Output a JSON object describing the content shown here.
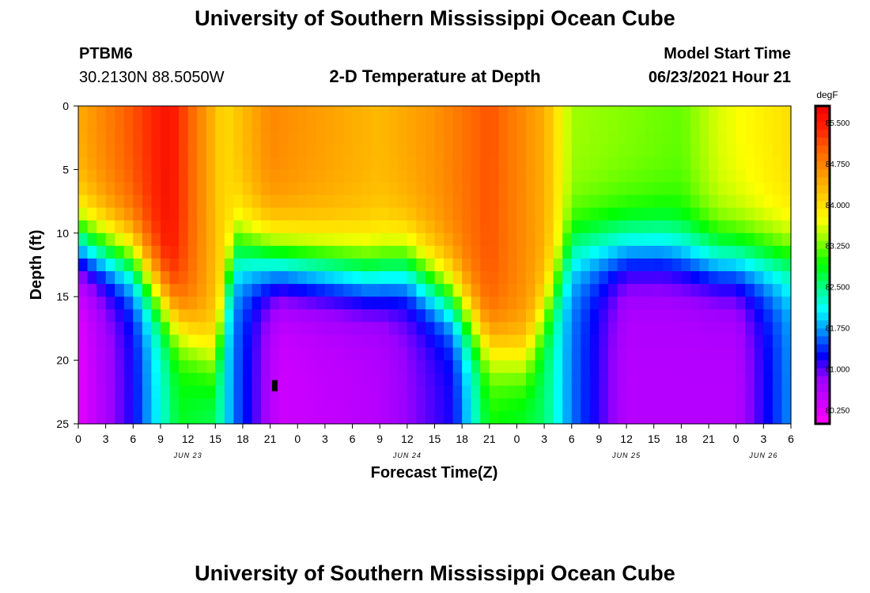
{
  "header": {
    "title": "University of Southern Mississippi Ocean Cube",
    "station": "PTBM6",
    "coords": "30.2130N  88.5050W",
    "subtitle": "2-D Temperature at Depth",
    "model_start_label": "Model Start Time",
    "model_start_value": "06/23/2021 Hour 21"
  },
  "footer": {
    "title": "University of Southern Mississippi Ocean Cube"
  },
  "chart_data": {
    "type": "heatmap",
    "title": "2-D Temperature at Depth",
    "xlabel": "Forecast Time(Z)",
    "ylabel": "Depth (ft)",
    "x_tick_labels": [
      "0",
      "3",
      "6",
      "9",
      "12",
      "15",
      "18",
      "21",
      "0",
      "3",
      "6",
      "9",
      "12",
      "15",
      "18",
      "21",
      "0",
      "3",
      "6",
      "9",
      "12",
      "15",
      "18",
      "21",
      "0",
      "3",
      "6"
    ],
    "x_range_hours": [
      0,
      78
    ],
    "date_labels": [
      {
        "label": "JUN 23",
        "hour": 12
      },
      {
        "label": "JUN 24",
        "hour": 36
      },
      {
        "label": "JUN 25",
        "hour": 60
      },
      {
        "label": "JUN 26",
        "hour": 75
      }
    ],
    "y_range_ft": [
      0,
      25
    ],
    "y_ticks": [
      0,
      5,
      10,
      15,
      20,
      25
    ],
    "marker": {
      "hour": 21.5,
      "depth_ft": 22
    },
    "colorbar": {
      "unit": "degF",
      "range": [
        80.0,
        85.8
      ],
      "tick_labels": [
        "85.500",
        "84.750",
        "84.000",
        "83.250",
        "82.500",
        "81.750",
        "81.000",
        "80.250"
      ],
      "colors": [
        "#ff00ff",
        "#cc00ff",
        "#9900ff",
        "#0000ff",
        "#0088ff",
        "#00ffff",
        "#00ff88",
        "#00ff00",
        "#88ff00",
        "#ffff00",
        "#ffcc00",
        "#ff9900",
        "#ff6600",
        "#ff2200",
        "#ee0000"
      ]
    },
    "field_description": {
      "surface_temp_by_hour": [
        [
          0,
          84.4
        ],
        [
          6,
          85.1
        ],
        [
          10,
          85.6
        ],
        [
          16,
          84.0
        ],
        [
          21,
          84.7
        ],
        [
          27,
          84.5
        ],
        [
          33,
          84.3
        ],
        [
          39,
          84.6
        ],
        [
          45,
          85.1
        ],
        [
          51,
          84.4
        ],
        [
          54,
          83.4
        ],
        [
          60,
          83.3
        ],
        [
          66,
          83.2
        ],
        [
          70,
          83.6
        ],
        [
          78,
          84.0
        ]
      ],
      "bottom_temp_by_hour": [
        [
          0,
          80.2
        ],
        [
          6,
          81.2
        ],
        [
          11,
          82.8
        ],
        [
          15,
          82.6
        ],
        [
          17,
          81.6
        ],
        [
          22,
          80.4
        ],
        [
          33,
          80.6
        ],
        [
          41,
          81.2
        ],
        [
          45,
          82.9
        ],
        [
          51,
          82.6
        ],
        [
          54,
          81.6
        ],
        [
          60,
          80.6
        ],
        [
          72,
          80.6
        ],
        [
          78,
          81.7
        ]
      ],
      "thermocline_depth_ft_by_hour": [
        [
          0,
          10.5
        ],
        [
          6,
          12
        ],
        [
          11,
          17
        ],
        [
          15,
          20
        ],
        [
          17,
          11
        ],
        [
          22,
          12
        ],
        [
          32,
          13
        ],
        [
          36,
          12.5
        ],
        [
          41,
          15
        ],
        [
          45,
          19
        ],
        [
          49,
          20
        ],
        [
          54,
          11
        ],
        [
          64,
          11
        ],
        [
          70,
          12
        ],
        [
          78,
          12
        ]
      ]
    }
  }
}
